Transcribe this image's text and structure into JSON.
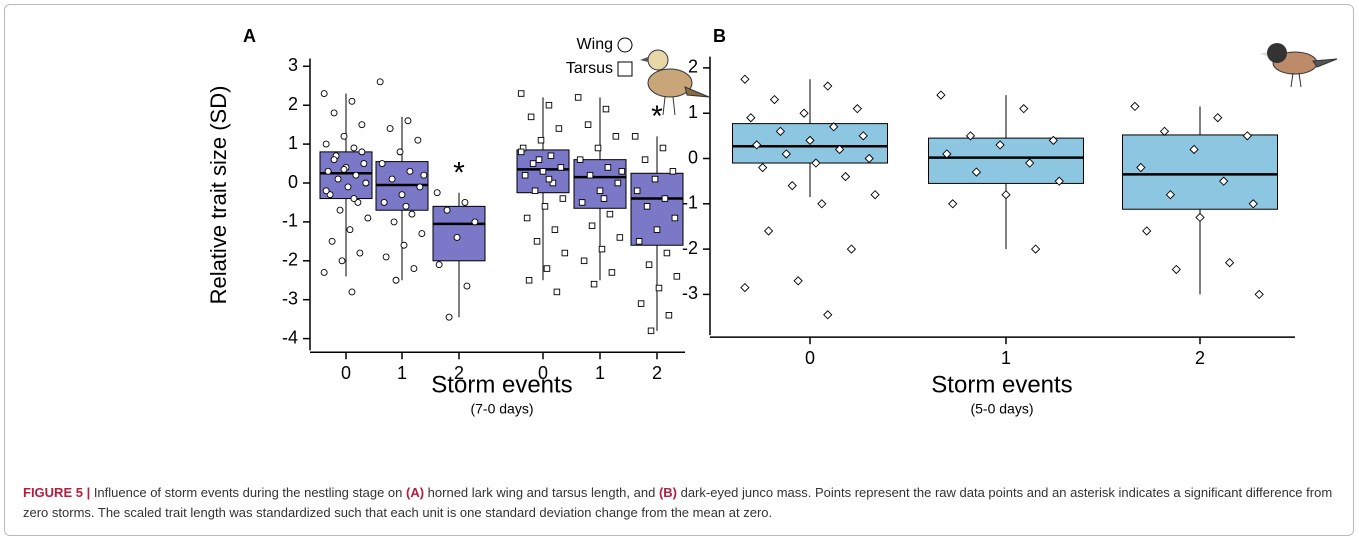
{
  "chart_data": [
    {
      "type": "box",
      "panel": "A",
      "ylabel": "Relative trait size (SD)",
      "xlabel": "Storm events",
      "xsublabel": "(7-0 days)",
      "ylim": [
        -4.3,
        3.2
      ],
      "yticks": [
        -4,
        -3,
        -2,
        -1,
        0,
        1,
        2,
        3
      ],
      "categories": [
        "0",
        "1",
        "2"
      ],
      "color": "#7b78c8",
      "series": [
        {
          "name": "Wing",
          "marker": "circle",
          "boxes": [
            {
              "whisker_low": -2.4,
              "q1": -0.4,
              "median": 0.25,
              "q3": 0.8,
              "whisker_high": 2.3,
              "points": [
                2.3,
                2.1,
                1.8,
                1.5,
                1.2,
                1.0,
                0.9,
                0.7,
                0.5,
                0.4,
                0.3,
                0.2,
                0.1,
                0,
                -0.1,
                -0.3,
                -0.5,
                -0.7,
                -0.9,
                -1.2,
                -1.5,
                -1.8,
                -2.0,
                -2.3,
                -2.8,
                0.6,
                0.8,
                0.35,
                -0.2,
                -0.4
              ]
            },
            {
              "whisker_low": -2.5,
              "q1": -0.7,
              "median": -0.05,
              "q3": 0.55,
              "whisker_high": 1.7,
              "points": [
                2.6,
                1.6,
                1.4,
                1.1,
                0.8,
                0.5,
                0.3,
                0.1,
                -0.1,
                -0.3,
                -0.5,
                -0.8,
                -1.0,
                -1.3,
                -1.6,
                -1.9,
                -2.2,
                -2.5,
                0.2,
                -0.6
              ]
            },
            {
              "whisker_low": -3.45,
              "q1": -2.0,
              "median": -1.05,
              "q3": -0.6,
              "whisker_high": -0.25,
              "label": "*",
              "points": [
                -0.25,
                -0.5,
                -0.7,
                -1.0,
                -1.4,
                -2.1,
                -2.65,
                -3.45
              ]
            }
          ]
        },
        {
          "name": "Tarsus",
          "marker": "square",
          "boxes": [
            {
              "whisker_low": -2.5,
              "q1": -0.25,
              "median": 0.35,
              "q3": 0.85,
              "whisker_high": 2.2,
              "points": [
                2.3,
                2.0,
                1.7,
                1.4,
                1.1,
                0.9,
                0.7,
                0.5,
                0.4,
                0.3,
                0.2,
                0,
                -0.2,
                -0.4,
                -0.6,
                -0.9,
                -1.2,
                -1.5,
                -1.8,
                -2.2,
                -2.5,
                -2.8,
                0.6,
                0.8,
                0.1
              ]
            },
            {
              "whisker_low": -2.5,
              "q1": -0.65,
              "median": 0.15,
              "q3": 0.6,
              "whisker_high": 2.2,
              "points": [
                2.2,
                1.9,
                1.5,
                1.2,
                0.9,
                0.6,
                0.4,
                0.2,
                0,
                -0.2,
                -0.5,
                -0.8,
                -1.1,
                -1.4,
                -1.7,
                -2.0,
                -2.3,
                -2.6,
                0.3,
                -0.4
              ]
            },
            {
              "whisker_low": -3.8,
              "q1": -1.6,
              "median": -0.4,
              "q3": 0.25,
              "whisker_high": 1.2,
              "label": "*",
              "points": [
                1.2,
                0.9,
                0.6,
                0.3,
                0.1,
                -0.2,
                -0.4,
                -0.6,
                -0.9,
                -1.2,
                -1.5,
                -1.8,
                -2.1,
                -2.4,
                -2.7,
                -3.1,
                -3.4,
                -3.8
              ]
            }
          ]
        }
      ]
    },
    {
      "type": "box",
      "panel": "B",
      "xlabel": "Storm events",
      "xsublabel": "(5-0 days)",
      "ylim": [
        -3.9,
        2.25
      ],
      "yticks": [
        -3,
        -2,
        -1,
        0,
        1,
        2
      ],
      "categories": [
        "0",
        "1",
        "2"
      ],
      "color": "#8cc6e0",
      "series": [
        {
          "marker": "diamond",
          "boxes": [
            {
              "whisker_low": -0.85,
              "q1": -0.1,
              "median": 0.27,
              "q3": 0.77,
              "whisker_high": 1.75,
              "points": [
                1.75,
                1.6,
                1.3,
                1.1,
                1.0,
                0.9,
                0.7,
                0.6,
                0.5,
                0.4,
                0.3,
                0.2,
                0.1,
                0,
                -0.1,
                -0.2,
                -0.4,
                -0.6,
                -0.8,
                -1.0,
                -1.6,
                -2.0,
                -2.7,
                -2.85,
                -3.45
              ]
            },
            {
              "whisker_low": -2.0,
              "q1": -0.55,
              "median": 0.02,
              "q3": 0.45,
              "whisker_high": 1.4,
              "points": [
                1.4,
                1.1,
                0.5,
                0.4,
                0.3,
                0.1,
                -0.1,
                -0.3,
                -0.5,
                -0.8,
                -1.0,
                -2.0
              ]
            },
            {
              "whisker_low": -3.0,
              "q1": -1.12,
              "median": -0.35,
              "q3": 0.52,
              "whisker_high": 1.15,
              "points": [
                1.15,
                0.9,
                0.6,
                0.5,
                0.2,
                -0.2,
                -0.5,
                -0.8,
                -1.0,
                -1.3,
                -1.6,
                -2.3,
                -2.45,
                -3.0
              ]
            }
          ]
        }
      ]
    }
  ],
  "caption": [
    {
      "text": "FIGURE 5 |",
      "bold": true
    },
    {
      "text": " Influence of storm events during the nestling stage on ",
      "bold": false
    },
    {
      "text": "(A)",
      "bold": true
    },
    {
      "text": " horned lark wing and tarsus length, and ",
      "bold": false
    },
    {
      "text": "(B)",
      "bold": true
    },
    {
      "text": " dark-eyed junco mass. Points represent the raw data points and an asterisk indicates a significant difference from zero storms. The scaled trait length was standardized such that each unit is one standard deviation change from the mean at zero.",
      "bold": false
    }
  ]
}
